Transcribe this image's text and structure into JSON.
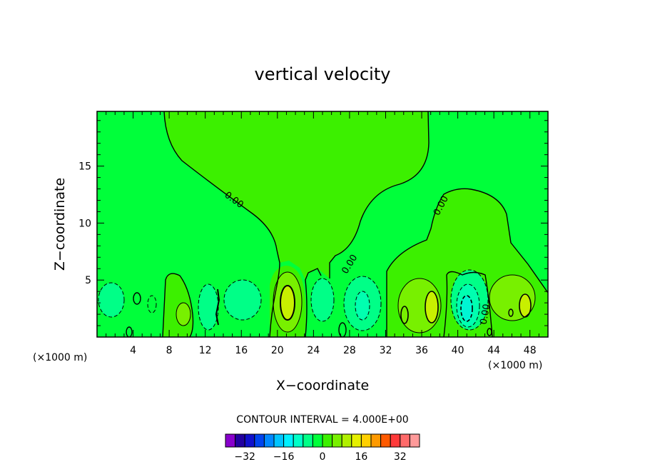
{
  "chart_data": {
    "type": "contour",
    "title": "vertical velocity",
    "xlabel": "X−coordinate",
    "ylabel": "Z−coordinate",
    "x_unit_left": "(×1000 m)",
    "x_unit_right": "(×1000 m)",
    "xlim": [
      0,
      50
    ],
    "ylim": [
      0,
      19.8
    ],
    "x_ticks": [
      4,
      8,
      12,
      16,
      20,
      24,
      28,
      32,
      36,
      40,
      44,
      48
    ],
    "x_tick_labels": [
      "4",
      "8",
      "12",
      "16",
      "20",
      "24",
      "28",
      "32",
      "36",
      "40",
      "44",
      "48"
    ],
    "y_ticks": [
      5,
      10,
      15
    ],
    "y_tick_labels": [
      "5",
      "10",
      "15"
    ],
    "contour_interval_text": "CONTOUR INTERVAL = 4.000E+00",
    "contour_label": "0.00",
    "background_color": "#00ff3a",
    "level_colors": {
      "neg4": "#00ff87",
      "neg8": "#00ffb0",
      "neg12": "#00f5d4",
      "pos4": "#3cf000",
      "pos8": "#78f000",
      "pos12": "#c8f000"
    },
    "colorbar": {
      "colors": [
        "#8800cc",
        "#2200a0",
        "#1010cc",
        "#0044ee",
        "#0088ff",
        "#00c4ff",
        "#00f0ff",
        "#00ffc8",
        "#00ff87",
        "#00ff3a",
        "#3cf000",
        "#78f000",
        "#b0f000",
        "#e6f000",
        "#ffd000",
        "#ff9a00",
        "#ff5a00",
        "#ff3a3a",
        "#ff6a6a",
        "#ff9a9a"
      ],
      "tick_values": [
        -32,
        -16,
        0,
        16,
        32
      ],
      "tick_labels": [
        "−32",
        "−16",
        "0",
        "16",
        "32"
      ]
    }
  }
}
